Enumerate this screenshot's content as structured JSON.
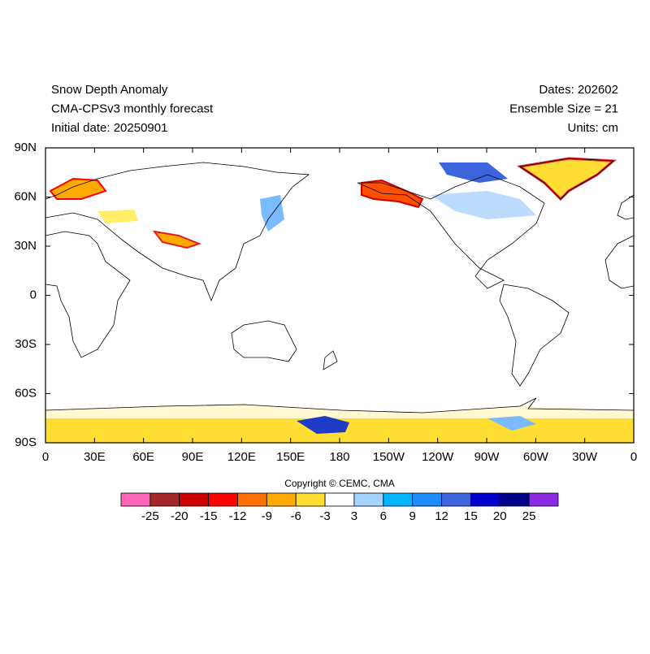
{
  "header": {
    "left": [
      "Snow Depth Anomaly",
      "CMA-CPSv3 monthly forecast",
      "Initial date: 20250901"
    ],
    "right": [
      "Dates: 202602",
      "Ensemble Size = 21",
      "Units: cm"
    ]
  },
  "map": {
    "lon_labels": [
      "0",
      "30E",
      "60E",
      "90E",
      "120E",
      "150E",
      "180",
      "150W",
      "120W",
      "90W",
      "60W",
      "30W",
      "0"
    ],
    "lat_labels": [
      "90N",
      "60N",
      "30N",
      "0",
      "30S",
      "60S",
      "90S"
    ]
  },
  "copyright": "Copyright © CEMC, CMA",
  "colorbar": {
    "colors": [
      "#ff66b8",
      "#a52828",
      "#cc0000",
      "#ff0000",
      "#ff6e00",
      "#ffaa00",
      "#ffdd33",
      "#ffffff",
      "#a6d2ff",
      "#00b4ff",
      "#1e8cff",
      "#3c64dc",
      "#0000cd",
      "#00008b",
      "#8a2be2"
    ],
    "labels": [
      -25,
      -20,
      -15,
      -12,
      -9,
      -6,
      -3,
      3,
      6,
      9,
      12,
      15,
      20,
      25
    ]
  }
}
